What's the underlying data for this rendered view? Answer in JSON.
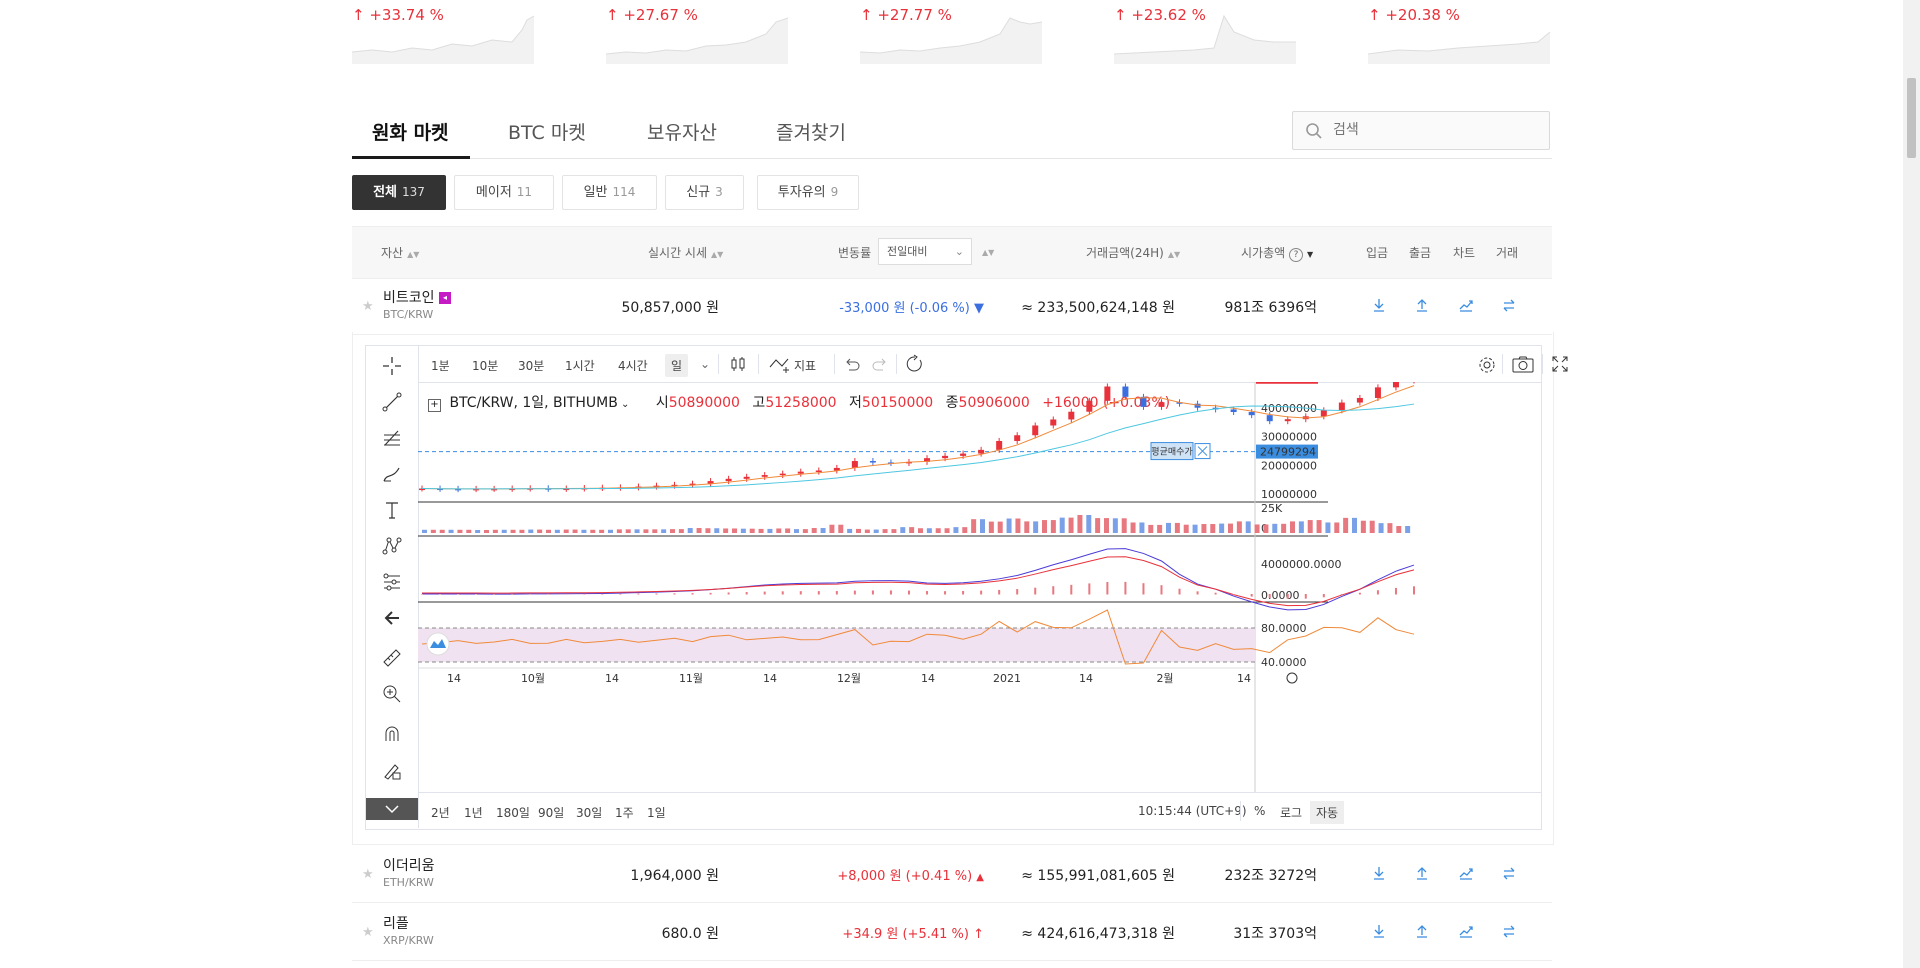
{
  "top_movers": [
    {
      "pct": "+33.74 %"
    },
    {
      "pct": "+27.67 %"
    },
    {
      "pct": "+27.77 %"
    },
    {
      "pct": "+23.62 %"
    },
    {
      "pct": "+20.38 %"
    }
  ],
  "market_tabs": [
    "원화 마켓",
    "BTC 마켓",
    "보유자산",
    "즐겨찾기"
  ],
  "search": {
    "placeholder": "검색"
  },
  "filters": [
    {
      "label": "전체",
      "count": "137"
    },
    {
      "label": "메이저",
      "count": "11"
    },
    {
      "label": "일반",
      "count": "114"
    },
    {
      "label": "신규",
      "count": "3"
    },
    {
      "label": "투자유의",
      "count": "9"
    }
  ],
  "table_header": {
    "asset": "자산",
    "price": "실시간 시세",
    "change": "변동률",
    "change_select": "전일대비",
    "volume": "거래금액(24H)",
    "market_cap": "시가총액",
    "deposit": "입금",
    "withdraw": "출금",
    "chart": "차트",
    "trade": "거래"
  },
  "rows": [
    {
      "name": "비트코인",
      "symbol": "BTC/KRW",
      "price": "50,857,000 원",
      "change": "-33,000 원 (-0.06 %)",
      "direction": "down",
      "volume": "≈ 233,500,624,148 원",
      "market_cap": "981조 6396억"
    },
    {
      "name": "이더리움",
      "symbol": "ETH/KRW",
      "price": "1,964,000 원",
      "change": "+8,000 원 (+0.41 %)",
      "direction": "up",
      "volume": "≈ 155,991,081,605 원",
      "market_cap": "232조 3272억"
    },
    {
      "name": "리플",
      "symbol": "XRP/KRW",
      "price": "680.0 원",
      "change": "+34.9 원 (+5.41 %)",
      "direction": "up",
      "volume": "≈ 424,616,473,318 원",
      "market_cap": "31조 3703억"
    }
  ],
  "colors": {
    "up": "#e8313a",
    "down": "#3a6fe0",
    "accent_blue": "#3b8de0"
  },
  "chart_toolbar": {
    "intervals": [
      "1분",
      "10분",
      "30분",
      "1시간",
      "4시간",
      "일"
    ],
    "selected_interval": "일",
    "indicator_label": "지표"
  },
  "chart_legend": {
    "symbol": "BTC/KRW, 1일, BITHUMB",
    "open_label": "시",
    "open": "50890000",
    "high_label": "고",
    "high": "51258000",
    "low_label": "저",
    "low": "50150000",
    "close_label": "종",
    "close": "50906000",
    "change": "+16000 (+0.03%)"
  },
  "chart_bottom": {
    "ranges": [
      "2년",
      "1년",
      "180일",
      "90일",
      "30일",
      "1주",
      "1일"
    ],
    "time": "10:15:44 (UTC+9)",
    "options": [
      "%",
      "로그",
      "자동"
    ]
  },
  "chart_data": {
    "type": "line",
    "title": "BTC/KRW, 1일, BITHUMB",
    "x_ticks": [
      "14",
      "10월",
      "14",
      "11월",
      "14",
      "12월",
      "14",
      "2021",
      "14",
      "2월",
      "14"
    ],
    "y_ticks": [
      "10000000",
      "20000000",
      "30000000",
      "40000000"
    ],
    "current_price_label": "50906000",
    "avg_buy_label": "24799294",
    "avg_buy_text": "평균매수가",
    "volume_axis": [
      "25K",
      "0"
    ],
    "macd_axis": [
      "4000000.0000",
      "0.0000"
    ],
    "rsi_axis": [
      "80.0000",
      "40.0000"
    ],
    "series": [
      {
        "values": [
          11.9,
          11.8,
          11.7,
          11.8,
          11.8,
          11.9,
          12.0,
          11.8,
          11.9,
          12.1,
          12.2,
          12.3,
          12.6,
          12.9,
          13.2,
          13.6,
          14.5,
          15.3,
          16.0,
          16.6,
          17.1,
          17.8,
          18.2,
          19.1,
          21.5,
          21.0,
          20.8,
          21.2,
          22.5,
          23.3,
          24.1,
          25.4,
          28.5,
          30.5,
          33.9,
          36.0,
          38.7,
          42.5,
          47.5,
          43.9,
          40.4,
          42.0,
          41.5,
          40.1,
          39.5,
          38.6,
          37.5,
          35.4,
          36.1,
          37.1,
          39.2,
          41.9,
          43.5,
          47.2,
          49.6,
          50.9
        ]
      }
    ]
  }
}
